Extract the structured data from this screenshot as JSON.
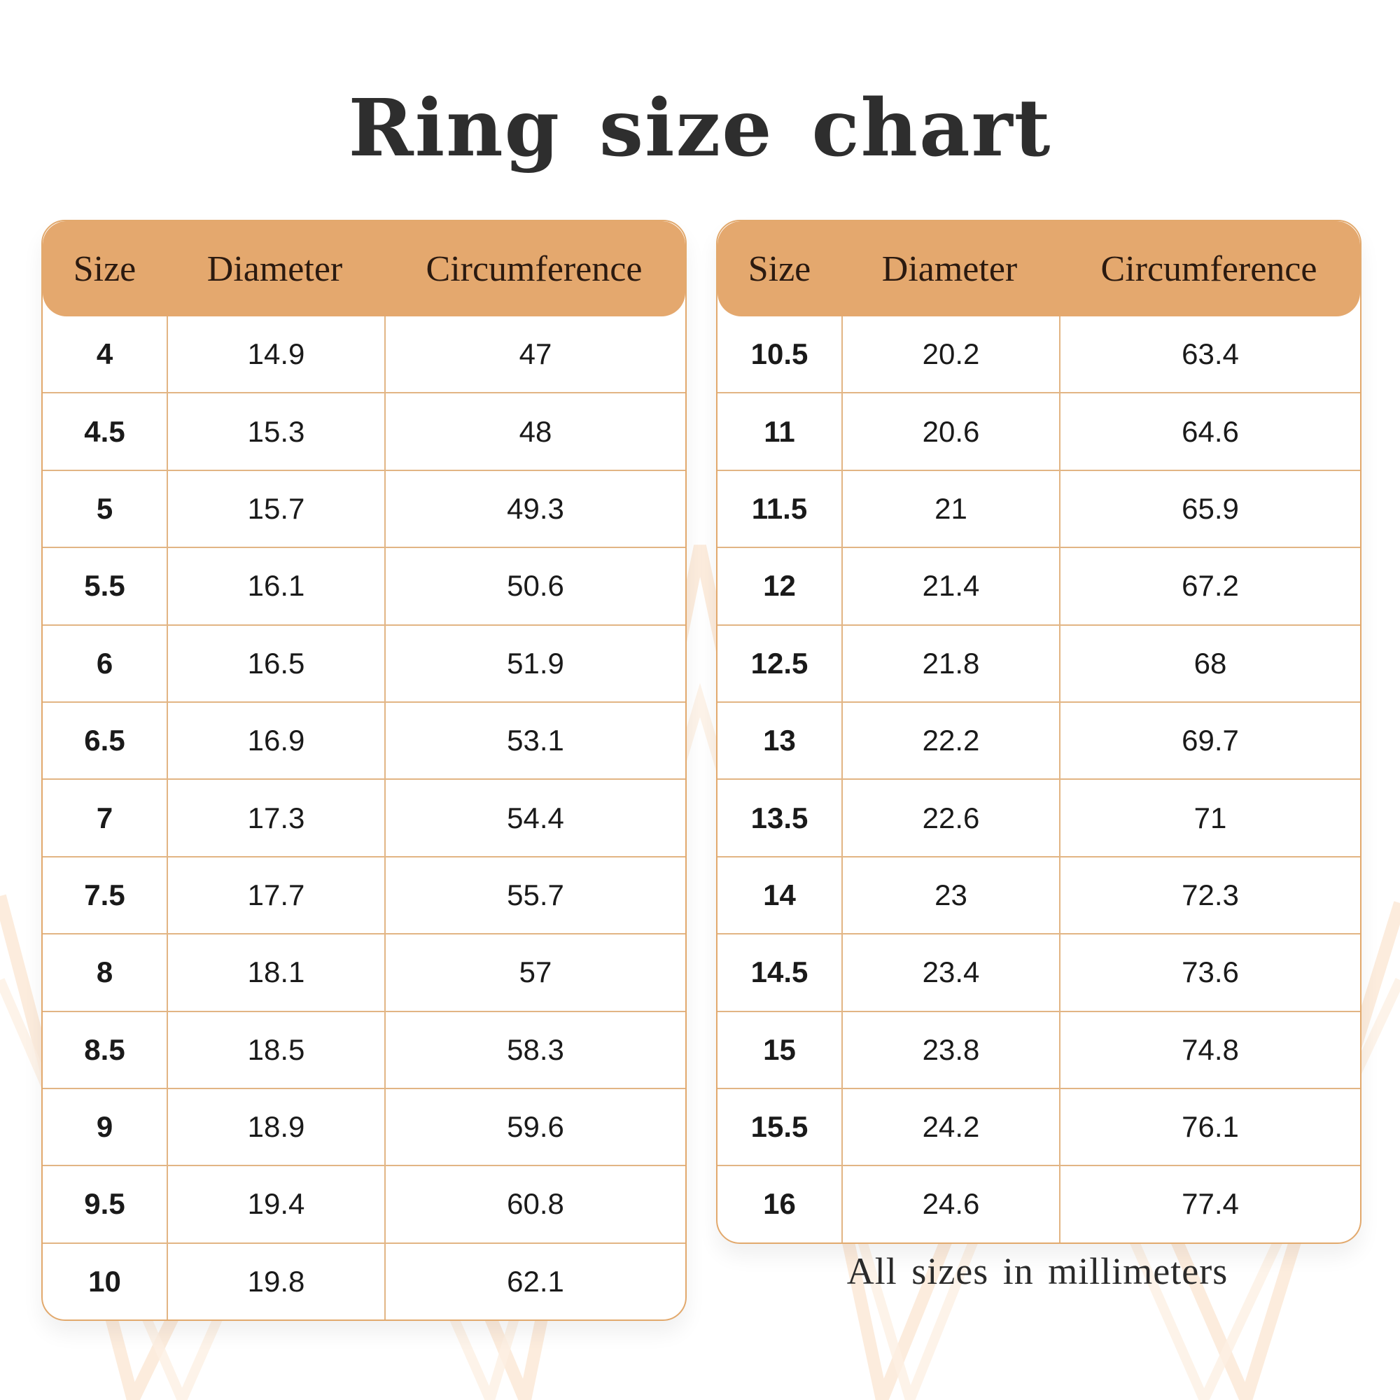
{
  "title": "Ring size chart",
  "accent_color": "#e4a86e",
  "border_color": "#e2b584",
  "headers": [
    "Size",
    "Diameter",
    "Circumference"
  ],
  "left_table": [
    [
      "4",
      "14.9",
      "47"
    ],
    [
      "4.5",
      "15.3",
      "48"
    ],
    [
      "5",
      "15.7",
      "49.3"
    ],
    [
      "5.5",
      "16.1",
      "50.6"
    ],
    [
      "6",
      "16.5",
      "51.9"
    ],
    [
      "6.5",
      "16.9",
      "53.1"
    ],
    [
      "7",
      "17.3",
      "54.4"
    ],
    [
      "7.5",
      "17.7",
      "55.7"
    ],
    [
      "8",
      "18.1",
      "57"
    ],
    [
      "8.5",
      "18.5",
      "58.3"
    ],
    [
      "9",
      "18.9",
      "59.6"
    ],
    [
      "9.5",
      "19.4",
      "60.8"
    ],
    [
      "10",
      "19.8",
      "62.1"
    ]
  ],
  "right_table": [
    [
      "10.5",
      "20.2",
      "63.4"
    ],
    [
      "11",
      "20.6",
      "64.6"
    ],
    [
      "11.5",
      "21",
      "65.9"
    ],
    [
      "12",
      "21.4",
      "67.2"
    ],
    [
      "12.5",
      "21.8",
      "68"
    ],
    [
      "13",
      "22.2",
      "69.7"
    ],
    [
      "13.5",
      "22.6",
      "71"
    ],
    [
      "14",
      "23",
      "72.3"
    ],
    [
      "14.5",
      "23.4",
      "73.6"
    ],
    [
      "15",
      "23.8",
      "74.8"
    ],
    [
      "15.5",
      "24.2",
      "76.1"
    ],
    [
      "16",
      "24.6",
      "77.4"
    ]
  ],
  "footer": "All sizes in millimeters"
}
